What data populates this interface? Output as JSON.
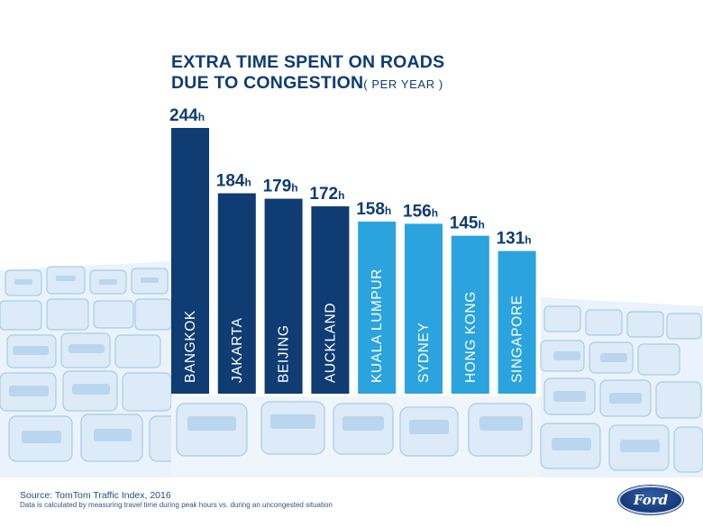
{
  "title": {
    "line1": "EXTRA TIME SPENT ON ROADS",
    "line2": "DUE TO CONGESTION",
    "suffix": "( PER YEAR )"
  },
  "chart_data": {
    "type": "bar",
    "title": "EXTRA TIME SPENT ON ROADS DUE TO CONGESTION ( PER YEAR )",
    "unit": "h",
    "categories": [
      "BANGKOK",
      "JAKARTA",
      "BEIJING",
      "AUCKLAND",
      "KUALA LUMPUR",
      "SYDNEY",
      "HONG KONG",
      "SINGAPORE"
    ],
    "values": [
      244,
      184,
      179,
      172,
      158,
      156,
      145,
      131
    ],
    "colors": [
      "#0e3c73",
      "#0e3c73",
      "#0e3c73",
      "#0e3c73",
      "#2aa3de",
      "#2aa3de",
      "#2aa3de",
      "#2aa3de"
    ],
    "value_labels": [
      "244",
      "184",
      "179",
      "172",
      "158",
      "156",
      "145",
      "131"
    ],
    "xlabel": "",
    "ylabel": "",
    "ylim": [
      0,
      244
    ]
  },
  "source": {
    "line1": "Source: TomTom Traffic Index, 2016",
    "line2": "Data is calculated by measuring travel time during peak hours vs. during an uncongested situation"
  },
  "logo": {
    "text": "Ford"
  },
  "colors": {
    "dark_blue": "#0e3c73",
    "light_blue": "#2aa3de",
    "traffic": "#d7e8f5"
  }
}
